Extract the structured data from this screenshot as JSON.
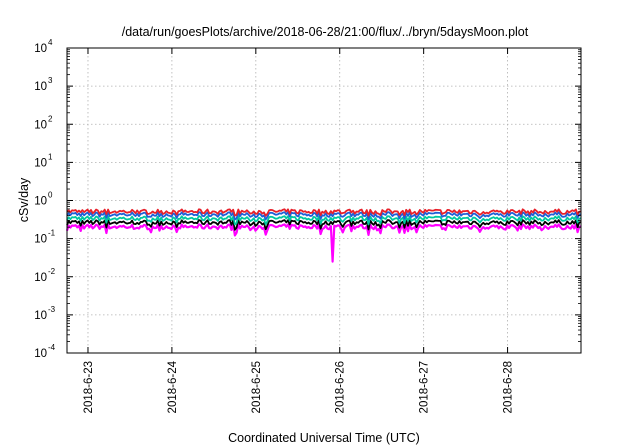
{
  "chart_data": {
    "type": "line",
    "title": "/data/run/goesPlots/archive/2018-06-28/21:00/flux/../bryn/5daysMoon.plot",
    "xlabel": "Coordinated Universal Time (UTC)",
    "ylabel": "cSv/day",
    "x_range": [
      "2018-06-22 18:00",
      "2018-06-28 21:00"
    ],
    "x_ticks": [
      "2018-6-23",
      "2018-6-24",
      "2018-6-25",
      "2018-6-26",
      "2018-6-27",
      "2018-6-28"
    ],
    "y_scale": "log",
    "ylim": [
      0.0001,
      10000
    ],
    "y_ticks": [
      {
        "base": "10",
        "exp": "-4"
      },
      {
        "base": "10",
        "exp": "-3"
      },
      {
        "base": "10",
        "exp": "-2"
      },
      {
        "base": "10",
        "exp": "-1"
      },
      {
        "base": "10",
        "exp": "0"
      },
      {
        "base": "10",
        "exp": "1"
      },
      {
        "base": "10",
        "exp": "2"
      },
      {
        "base": "10",
        "exp": "3"
      },
      {
        "base": "10",
        "exp": "4"
      }
    ],
    "grid": true,
    "series": [
      {
        "color": "#ff00ff",
        "level": 0.2
      },
      {
        "color": "#000000",
        "level": 0.26
      },
      {
        "color": "#00c8a0",
        "level": 0.33
      },
      {
        "color": "#1e5fd6",
        "level": 0.42
      },
      {
        "color": "#e8202a",
        "level": 0.5
      }
    ],
    "notable_dips": [
      {
        "x": "2018-06-25 22:00",
        "value": 0.025
      }
    ]
  }
}
